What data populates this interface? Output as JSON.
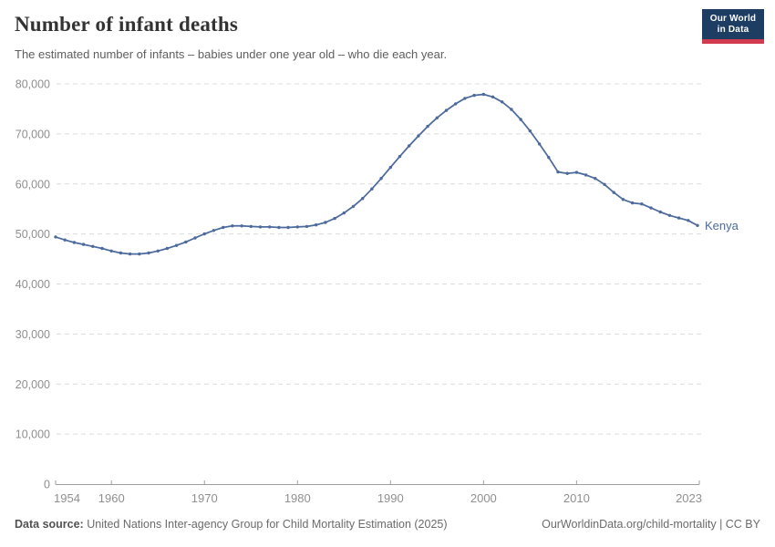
{
  "header": {
    "title": "Number of infant deaths",
    "subtitle": "The estimated number of infants – babies under one year old – who die each year.",
    "logo_line1": "Our World",
    "logo_line2": "in Data"
  },
  "chart_data": {
    "type": "line",
    "title": "Number of infant deaths",
    "xlabel": "",
    "ylabel": "",
    "xlim": [
      1954,
      2023
    ],
    "ylim": [
      0,
      80000
    ],
    "grid": "horizontal-dashed",
    "legend_position": "end-of-line-label",
    "x_ticks": [
      1954,
      1960,
      1970,
      1980,
      1990,
      2000,
      2010,
      2023
    ],
    "x_tick_labels": [
      "1954",
      "1960",
      "1970",
      "1980",
      "1990",
      "2000",
      "2010",
      "2023"
    ],
    "y_ticks": [
      0,
      10000,
      20000,
      30000,
      40000,
      50000,
      60000,
      70000,
      80000
    ],
    "y_tick_labels": [
      "0",
      "10,000",
      "20,000",
      "30,000",
      "40,000",
      "50,000",
      "60,000",
      "70,000",
      "80,000"
    ],
    "x": [
      1954,
      1955,
      1956,
      1957,
      1958,
      1959,
      1960,
      1961,
      1962,
      1963,
      1964,
      1965,
      1966,
      1967,
      1968,
      1969,
      1970,
      1971,
      1972,
      1973,
      1974,
      1975,
      1976,
      1977,
      1978,
      1979,
      1980,
      1981,
      1982,
      1983,
      1984,
      1985,
      1986,
      1987,
      1988,
      1989,
      1990,
      1991,
      1992,
      1993,
      1994,
      1995,
      1996,
      1997,
      1998,
      1999,
      2000,
      2001,
      2002,
      2003,
      2004,
      2005,
      2006,
      2007,
      2008,
      2009,
      2010,
      2011,
      2012,
      2013,
      2014,
      2015,
      2016,
      2017,
      2018,
      2019,
      2020,
      2021,
      2022,
      2023
    ],
    "series": [
      {
        "name": "Kenya",
        "color": "#4c6a9c",
        "values": [
          49400,
          48800,
          48300,
          47900,
          47500,
          47100,
          46600,
          46200,
          46000,
          46000,
          46200,
          46600,
          47100,
          47700,
          48400,
          49200,
          50000,
          50700,
          51300,
          51600,
          51600,
          51500,
          51400,
          51400,
          51300,
          51300,
          51400,
          51500,
          51800,
          52300,
          53100,
          54200,
          55500,
          57100,
          59000,
          61100,
          63300,
          65500,
          67600,
          69600,
          71500,
          73200,
          74700,
          76000,
          77100,
          77700,
          77900,
          77400,
          76400,
          74900,
          72900,
          70600,
          68000,
          65300,
          62400,
          62100,
          62300,
          61800,
          61100,
          59900,
          58300,
          56900,
          56200,
          56000,
          55200,
          54400,
          53700,
          53200,
          52700,
          51700
        ]
      }
    ],
    "end_label": "Kenya"
  },
  "footer": {
    "source_label": "Data source:",
    "source_text": "United Nations Inter-agency Group for Child Mortality Estimation (2025)",
    "credit": "OurWorldinData.org/child-mortality | CC BY"
  },
  "colors": {
    "line": "#4c6a9c",
    "logo_bg": "#1d3d63",
    "logo_accent": "#d23a50",
    "grid": "#dcdcdc",
    "axis": "#9e9e9e",
    "tick_label": "#8f8f8f"
  }
}
